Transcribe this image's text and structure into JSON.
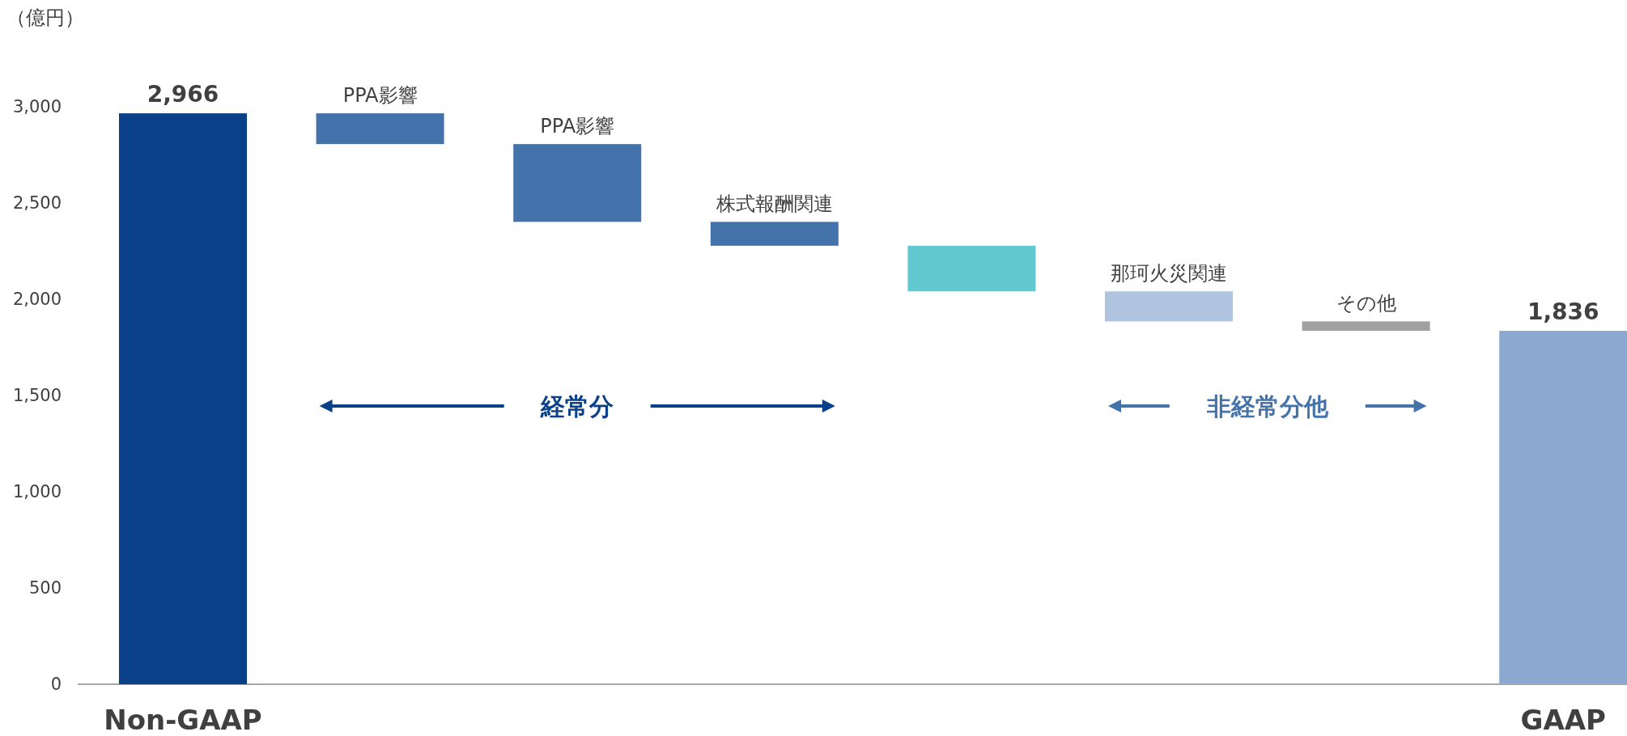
{
  "chart_data": {
    "type": "bar",
    "ylabel": "（億円）",
    "categories": [
      "Non-GAAP",
      "PPA影響",
      "PPA影響",
      "株式報酬関連",
      null,
      "那珂火災関連",
      "その他",
      "GAAP"
    ],
    "base": [
      0,
      2966,
      2806,
      2402,
      2278,
      2041,
      1885,
      0
    ],
    "values": [
      2966,
      -160,
      -404,
      -124,
      -237,
      -156,
      -49,
      1836
    ],
    "colors": [
      "#0a4088",
      "#4472aa",
      "#4472aa",
      "#4472aa",
      "#63c9d0",
      "#b0c4e0",
      "#a0a0a0",
      "#8aa8d0"
    ],
    "value_labels": [
      "2,966",
      null,
      null,
      null,
      null,
      null,
      null,
      "1,836"
    ],
    "ylim": [
      0,
      3000
    ],
    "yticks": [
      {
        "value": 0,
        "label": "0"
      },
      {
        "value": 500,
        "label": "500"
      },
      {
        "value": 1000,
        "label": "1,000"
      },
      {
        "value": 1500,
        "label": "1,500"
      },
      {
        "value": 2000,
        "label": "2,000"
      },
      {
        "value": 2500,
        "label": "2,500"
      },
      {
        "value": 3000,
        "label": "3,000"
      }
    ],
    "annotations": [
      "経常分",
      "非経常分他"
    ]
  }
}
